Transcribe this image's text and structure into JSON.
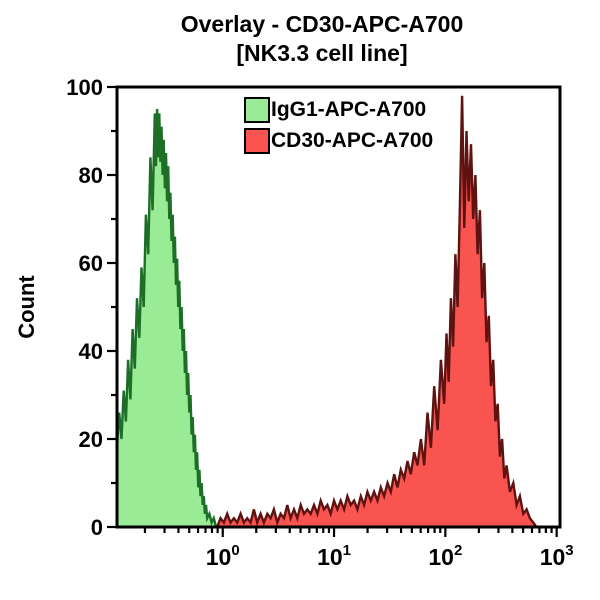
{
  "title": {
    "line1": "Overlay - CD30-APC-A700",
    "line2": "[NK3.3 cell line]"
  },
  "legend": {
    "items": [
      {
        "label": "IgG1-APC-A700",
        "color": "#99eb95",
        "border": "#000000"
      },
      {
        "label": "CD30-APC-A700",
        "color": "#f95450",
        "border": "#000000"
      }
    ]
  },
  "chart_data": {
    "type": "area",
    "subtype": "flow-cytometry-histogram-overlay",
    "title": "Overlay - CD30-APC-A700 [NK3.3 cell line]",
    "y_label": "Count",
    "x_scale": "log10",
    "x_log_range": [
      -0.95,
      3.03
    ],
    "ylim": [
      0,
      100
    ],
    "grid": false,
    "legend_position": "top-center-inside",
    "axis_color": "#000000",
    "y_ticks": [
      0,
      20,
      40,
      60,
      80,
      100
    ],
    "y_minor_step": 10,
    "x_ticks": [
      {
        "log": 0,
        "base": "10",
        "exp": "0"
      },
      {
        "log": 1,
        "base": "10",
        "exp": "1"
      },
      {
        "log": 2,
        "base": "10",
        "exp": "2"
      },
      {
        "log": 3,
        "base": "10",
        "exp": "3"
      }
    ],
    "x_minor_decades": [
      -1,
      0,
      1,
      2,
      3
    ],
    "series": [
      {
        "name": "IgG1-APC-A700",
        "fill": "#99eb95",
        "stroke": "#1d6e27",
        "points": [
          [
            -0.95,
            18
          ],
          [
            -0.93,
            26
          ],
          [
            -0.91,
            20
          ],
          [
            -0.89,
            31
          ],
          [
            -0.87,
            24
          ],
          [
            -0.85,
            38
          ],
          [
            -0.83,
            29
          ],
          [
            -0.81,
            45
          ],
          [
            -0.79,
            36
          ],
          [
            -0.77,
            52
          ],
          [
            -0.75,
            43
          ],
          [
            -0.73,
            59
          ],
          [
            -0.71,
            50
          ],
          [
            -0.69,
            71
          ],
          [
            -0.67,
            62
          ],
          [
            -0.65,
            84
          ],
          [
            -0.63,
            72
          ],
          [
            -0.61,
            94
          ],
          [
            -0.6,
            82
          ],
          [
            -0.59,
            95
          ],
          [
            -0.58,
            84
          ],
          [
            -0.57,
            94
          ],
          [
            -0.56,
            83
          ],
          [
            -0.55,
            91
          ],
          [
            -0.54,
            80
          ],
          [
            -0.53,
            88
          ],
          [
            -0.52,
            77
          ],
          [
            -0.51,
            85
          ],
          [
            -0.5,
            74
          ],
          [
            -0.49,
            82
          ],
          [
            -0.48,
            70
          ],
          [
            -0.47,
            76
          ],
          [
            -0.46,
            65
          ],
          [
            -0.45,
            71
          ],
          [
            -0.44,
            60
          ],
          [
            -0.43,
            66
          ],
          [
            -0.42,
            55
          ],
          [
            -0.41,
            61
          ],
          [
            -0.4,
            50
          ],
          [
            -0.39,
            56
          ],
          [
            -0.38,
            45
          ],
          [
            -0.37,
            50
          ],
          [
            -0.36,
            40
          ],
          [
            -0.35,
            45
          ],
          [
            -0.34,
            35
          ],
          [
            -0.33,
            40
          ],
          [
            -0.32,
            30
          ],
          [
            -0.31,
            35
          ],
          [
            -0.3,
            26
          ],
          [
            -0.29,
            30
          ],
          [
            -0.28,
            21
          ],
          [
            -0.27,
            25
          ],
          [
            -0.26,
            17
          ],
          [
            -0.25,
            21
          ],
          [
            -0.24,
            13
          ],
          [
            -0.23,
            17
          ],
          [
            -0.22,
            9
          ],
          [
            -0.21,
            13
          ],
          [
            -0.2,
            7
          ],
          [
            -0.19,
            10
          ],
          [
            -0.18,
            5
          ],
          [
            -0.17,
            7
          ],
          [
            -0.16,
            3
          ],
          [
            -0.15,
            5
          ],
          [
            -0.14,
            2
          ],
          [
            -0.12,
            3
          ],
          [
            -0.1,
            1
          ],
          [
            -0.08,
            2
          ],
          [
            -0.06,
            0
          ]
        ]
      },
      {
        "name": "CD30-APC-A700",
        "fill": "#f95450",
        "stroke": "#5f1311",
        "points": [
          [
            -0.05,
            0
          ],
          [
            -0.02,
            2
          ],
          [
            0.01,
            1
          ],
          [
            0.04,
            3
          ],
          [
            0.07,
            1
          ],
          [
            0.1,
            2
          ],
          [
            0.13,
            1
          ],
          [
            0.16,
            3
          ],
          [
            0.19,
            1
          ],
          [
            0.22,
            2
          ],
          [
            0.25,
            1
          ],
          [
            0.28,
            4
          ],
          [
            0.31,
            1
          ],
          [
            0.34,
            3
          ],
          [
            0.37,
            1
          ],
          [
            0.4,
            3
          ],
          [
            0.43,
            2
          ],
          [
            0.46,
            4
          ],
          [
            0.49,
            1
          ],
          [
            0.52,
            3
          ],
          [
            0.55,
            2
          ],
          [
            0.58,
            5
          ],
          [
            0.61,
            2
          ],
          [
            0.64,
            4
          ],
          [
            0.67,
            2
          ],
          [
            0.7,
            5
          ],
          [
            0.73,
            3
          ],
          [
            0.76,
            4
          ],
          [
            0.79,
            3
          ],
          [
            0.82,
            5
          ],
          [
            0.85,
            3
          ],
          [
            0.88,
            6
          ],
          [
            0.91,
            4
          ],
          [
            0.94,
            5
          ],
          [
            0.97,
            3
          ],
          [
            1.0,
            6
          ],
          [
            1.03,
            4
          ],
          [
            1.06,
            6
          ],
          [
            1.09,
            4
          ],
          [
            1.12,
            7
          ],
          [
            1.15,
            5
          ],
          [
            1.18,
            6
          ],
          [
            1.21,
            4
          ],
          [
            1.24,
            7
          ],
          [
            1.27,
            5
          ],
          [
            1.3,
            8
          ],
          [
            1.33,
            6
          ],
          [
            1.36,
            8
          ],
          [
            1.39,
            6
          ],
          [
            1.42,
            9
          ],
          [
            1.45,
            7
          ],
          [
            1.48,
            10
          ],
          [
            1.51,
            8
          ],
          [
            1.54,
            12
          ],
          [
            1.57,
            9
          ],
          [
            1.6,
            13
          ],
          [
            1.63,
            11
          ],
          [
            1.66,
            15
          ],
          [
            1.69,
            12
          ],
          [
            1.72,
            17
          ],
          [
            1.75,
            14
          ],
          [
            1.78,
            20
          ],
          [
            1.81,
            14
          ],
          [
            1.84,
            26
          ],
          [
            1.87,
            18
          ],
          [
            1.9,
            32
          ],
          [
            1.93,
            22
          ],
          [
            1.96,
            38
          ],
          [
            1.99,
            28
          ],
          [
            2.01,
            44
          ],
          [
            2.03,
            33
          ],
          [
            2.05,
            52
          ],
          [
            2.07,
            41
          ],
          [
            2.09,
            62
          ],
          [
            2.11,
            50
          ],
          [
            2.13,
            72
          ],
          [
            2.15,
            98
          ],
          [
            2.17,
            68
          ],
          [
            2.19,
            90
          ],
          [
            2.21,
            74
          ],
          [
            2.23,
            87
          ],
          [
            2.25,
            70
          ],
          [
            2.27,
            80
          ],
          [
            2.29,
            62
          ],
          [
            2.31,
            72
          ],
          [
            2.33,
            52
          ],
          [
            2.35,
            60
          ],
          [
            2.37,
            42
          ],
          [
            2.39,
            48
          ],
          [
            2.41,
            32
          ],
          [
            2.43,
            38
          ],
          [
            2.45,
            24
          ],
          [
            2.47,
            28
          ],
          [
            2.49,
            16
          ],
          [
            2.51,
            20
          ],
          [
            2.53,
            11
          ],
          [
            2.55,
            14
          ],
          [
            2.58,
            8
          ],
          [
            2.61,
            10
          ],
          [
            2.64,
            5
          ],
          [
            2.67,
            7
          ],
          [
            2.7,
            3
          ],
          [
            2.73,
            4
          ],
          [
            2.76,
            2
          ],
          [
            2.79,
            1
          ],
          [
            2.82,
            0
          ]
        ]
      }
    ]
  }
}
